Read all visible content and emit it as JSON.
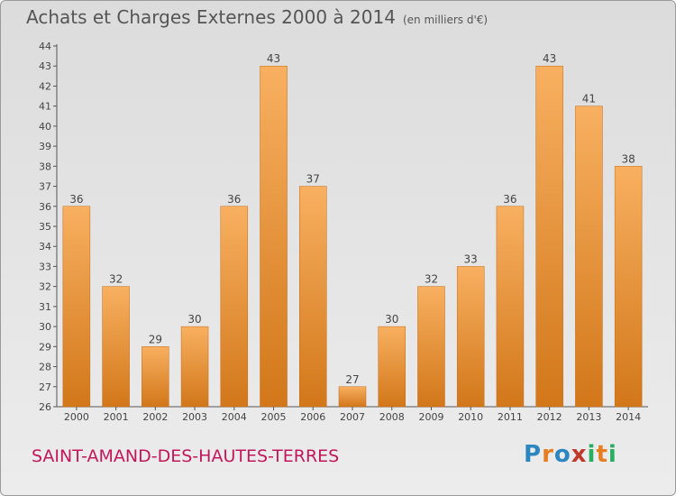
{
  "header": {
    "title": "Achats et Charges Externes 2000 à 2014",
    "unit": "(en milliers d'€)"
  },
  "footer": {
    "town": "SAINT-AMAND-DES-HAUTES-TERRES",
    "logo": [
      "P",
      "r",
      "o",
      "x",
      "i",
      "t",
      "i"
    ],
    "logo_colors": [
      "#2e86c1",
      "#e67e22",
      "#2e86c1",
      "#c0392b",
      "#27ae60",
      "#e67e22",
      "#27ae60"
    ]
  },
  "chart_data": {
    "type": "bar",
    "categories": [
      "2000",
      "2001",
      "2002",
      "2003",
      "2004",
      "2005",
      "2006",
      "2007",
      "2008",
      "2009",
      "2010",
      "2011",
      "2012",
      "2013",
      "2014"
    ],
    "values": [
      36,
      32,
      29,
      30,
      36,
      43,
      37,
      27,
      30,
      32,
      33,
      36,
      43,
      41,
      38
    ],
    "ylim": [
      26,
      44
    ],
    "yticks": [
      26,
      27,
      28,
      29,
      30,
      31,
      32,
      33,
      34,
      35,
      36,
      37,
      38,
      39,
      40,
      41,
      42,
      43,
      44
    ],
    "grid": false,
    "bar_color": "#f0922e",
    "bar_color_light": "#f8b060",
    "bar_color_dark": "#d2771a"
  }
}
